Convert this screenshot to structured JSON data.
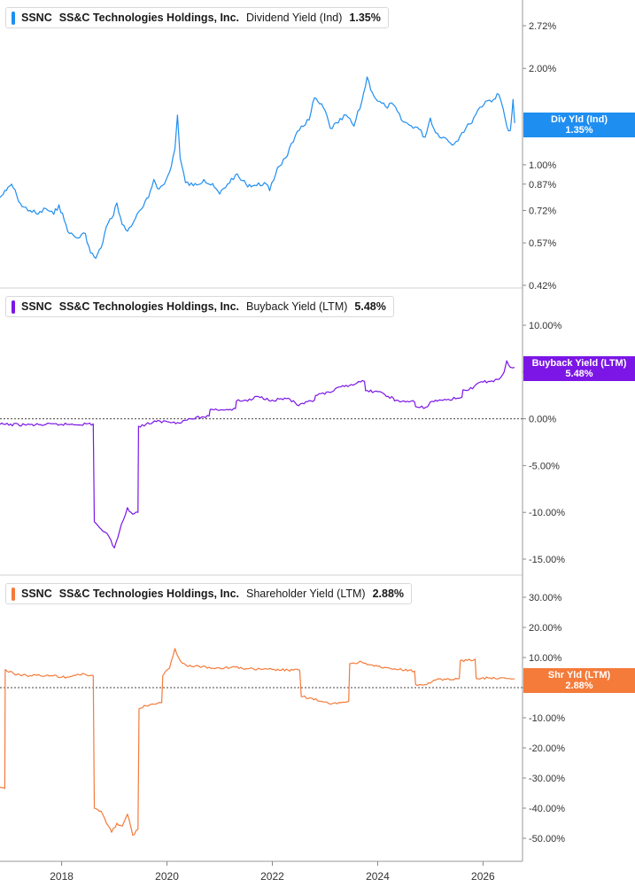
{
  "chart_data": [
    {
      "type": "line",
      "ticker": "SSNC",
      "company": "SS&C Technologies Holdings, Inc.",
      "metric": "Dividend Yield (Ind)",
      "current_value": "1.35%",
      "tag_label": "Div Yld (Ind)",
      "tag_value": "1.35%",
      "color": "#1f8ef1",
      "scale": "log",
      "ylim": [
        0.4,
        3.2
      ],
      "y_ticks": [
        {
          "value": 2.72,
          "label": "2.72%"
        },
        {
          "value": 2.0,
          "label": "2.00%"
        },
        {
          "value": 1.0,
          "label": "1.00%"
        },
        {
          "value": 0.87,
          "label": "0.87%"
        },
        {
          "value": 0.72,
          "label": "0.72%"
        },
        {
          "value": 0.57,
          "label": "0.57%"
        },
        {
          "value": 0.42,
          "label": "0.42%"
        }
      ],
      "zero_line": false,
      "series": [
        {
          "values": [
            [
              2016.83,
              0.79
            ],
            [
              2016.95,
              0.83
            ],
            [
              2017.05,
              0.87
            ],
            [
              2017.15,
              0.8
            ],
            [
              2017.25,
              0.74
            ],
            [
              2017.4,
              0.72
            ],
            [
              2017.55,
              0.7
            ],
            [
              2017.7,
              0.73
            ],
            [
              2017.85,
              0.7
            ],
            [
              2017.95,
              0.75
            ],
            [
              2018.05,
              0.67
            ],
            [
              2018.15,
              0.61
            ],
            [
              2018.3,
              0.59
            ],
            [
              2018.45,
              0.61
            ],
            [
              2018.55,
              0.53
            ],
            [
              2018.65,
              0.51
            ],
            [
              2018.75,
              0.55
            ],
            [
              2018.85,
              0.64
            ],
            [
              2018.95,
              0.68
            ],
            [
              2019.05,
              0.76
            ],
            [
              2019.15,
              0.65
            ],
            [
              2019.25,
              0.62
            ],
            [
              2019.4,
              0.68
            ],
            [
              2019.55,
              0.74
            ],
            [
              2019.65,
              0.79
            ],
            [
              2019.75,
              0.9
            ],
            [
              2019.85,
              0.84
            ],
            [
              2019.95,
              0.87
            ],
            [
              2020.05,
              0.95
            ],
            [
              2020.15,
              1.12
            ],
            [
              2020.2,
              1.43
            ],
            [
              2020.25,
              1.05
            ],
            [
              2020.35,
              0.88
            ],
            [
              2020.5,
              0.86
            ],
            [
              2020.7,
              0.9
            ],
            [
              2020.9,
              0.85
            ],
            [
              2021.0,
              0.81
            ],
            [
              2021.15,
              0.87
            ],
            [
              2021.3,
              0.93
            ],
            [
              2021.5,
              0.87
            ],
            [
              2021.7,
              0.86
            ],
            [
              2021.85,
              0.88
            ],
            [
              2021.95,
              0.83
            ],
            [
              2022.1,
              0.98
            ],
            [
              2022.25,
              1.05
            ],
            [
              2022.4,
              1.18
            ],
            [
              2022.55,
              1.32
            ],
            [
              2022.7,
              1.38
            ],
            [
              2022.8,
              1.62
            ],
            [
              2022.9,
              1.55
            ],
            [
              2023.0,
              1.48
            ],
            [
              2023.1,
              1.3
            ],
            [
              2023.25,
              1.35
            ],
            [
              2023.4,
              1.43
            ],
            [
              2023.55,
              1.32
            ],
            [
              2023.7,
              1.58
            ],
            [
              2023.8,
              1.88
            ],
            [
              2023.9,
              1.68
            ],
            [
              2024.0,
              1.58
            ],
            [
              2024.15,
              1.52
            ],
            [
              2024.3,
              1.54
            ],
            [
              2024.45,
              1.38
            ],
            [
              2024.6,
              1.33
            ],
            [
              2024.75,
              1.31
            ],
            [
              2024.9,
              1.22
            ],
            [
              2025.0,
              1.4
            ],
            [
              2025.1,
              1.26
            ],
            [
              2025.25,
              1.22
            ],
            [
              2025.45,
              1.16
            ],
            [
              2025.6,
              1.26
            ],
            [
              2025.75,
              1.34
            ],
            [
              2025.9,
              1.48
            ],
            [
              2026.05,
              1.58
            ],
            [
              2026.2,
              1.6
            ],
            [
              2026.3,
              1.66
            ],
            [
              2026.38,
              1.5
            ],
            [
              2026.45,
              1.32
            ],
            [
              2026.52,
              1.28
            ],
            [
              2026.55,
              1.45
            ],
            [
              2026.57,
              1.6
            ],
            [
              2026.6,
              1.35
            ]
          ]
        }
      ]
    },
    {
      "type": "line",
      "ticker": "SSNC",
      "company": "SS&C Technologies Holdings, Inc.",
      "metric": "Buyback Yield (LTM)",
      "current_value": "5.48%",
      "tag_label": "Buyback Yield (LTM)",
      "tag_value": "5.48%",
      "color": "#7b16e6",
      "scale": "linear",
      "ylim": [
        -15.0,
        10.0
      ],
      "y_ticks": [
        {
          "value": 10,
          "label": "10.00%"
        },
        {
          "value": 5,
          "label": "5.00%"
        },
        {
          "value": 0,
          "label": "0.00%"
        },
        {
          "value": -5,
          "label": "-5.00%"
        },
        {
          "value": -10,
          "label": "-10.00%"
        },
        {
          "value": -15,
          "label": "-15.00%"
        }
      ],
      "zero_line": true,
      "series": [
        {
          "values": [
            [
              2016.83,
              -0.6
            ],
            [
              2017.5,
              -0.65
            ],
            [
              2018.0,
              -0.6
            ],
            [
              2018.6,
              -0.55
            ],
            [
              2018.62,
              -11.0
            ],
            [
              2018.75,
              -11.8
            ],
            [
              2018.9,
              -12.6
            ],
            [
              2019.0,
              -13.8
            ],
            [
              2019.1,
              -12.0
            ],
            [
              2019.25,
              -9.5
            ],
            [
              2019.35,
              -10.2
            ],
            [
              2019.45,
              -10.0
            ],
            [
              2019.46,
              -0.8
            ],
            [
              2019.6,
              -0.6
            ],
            [
              2019.8,
              -0.3
            ],
            [
              2020.0,
              -0.3
            ],
            [
              2020.2,
              -0.4
            ],
            [
              2020.45,
              0.0
            ],
            [
              2020.7,
              0.2
            ],
            [
              2020.8,
              0.3
            ],
            [
              2020.82,
              1.0
            ],
            [
              2021.2,
              1.0
            ],
            [
              2021.3,
              1.1
            ],
            [
              2021.32,
              1.9
            ],
            [
              2021.6,
              2.0
            ],
            [
              2021.7,
              2.4
            ],
            [
              2022.0,
              2.0
            ],
            [
              2022.3,
              2.2
            ],
            [
              2022.5,
              1.4
            ],
            [
              2022.6,
              1.6
            ],
            [
              2022.8,
              2.0
            ],
            [
              2022.82,
              2.5
            ],
            [
              2023.1,
              2.8
            ],
            [
              2023.3,
              3.4
            ],
            [
              2023.6,
              3.8
            ],
            [
              2023.75,
              4.0
            ],
            [
              2023.77,
              3.0
            ],
            [
              2024.0,
              2.9
            ],
            [
              2024.2,
              2.4
            ],
            [
              2024.3,
              2.2
            ],
            [
              2024.32,
              1.9
            ],
            [
              2024.7,
              1.8
            ],
            [
              2024.72,
              1.3
            ],
            [
              2024.8,
              1.2
            ],
            [
              2024.95,
              1.3
            ],
            [
              2025.0,
              1.8
            ],
            [
              2025.2,
              2.0
            ],
            [
              2025.55,
              2.2
            ],
            [
              2025.6,
              2.3
            ],
            [
              2025.62,
              3.1
            ],
            [
              2025.8,
              3.2
            ],
            [
              2025.9,
              3.8
            ],
            [
              2026.1,
              4.0
            ],
            [
              2026.3,
              4.2
            ],
            [
              2026.4,
              5.0
            ],
            [
              2026.45,
              6.2
            ],
            [
              2026.52,
              5.5
            ],
            [
              2026.6,
              5.48
            ]
          ]
        }
      ]
    },
    {
      "type": "line",
      "ticker": "SSNC",
      "company": "SS&C Technologies Holdings, Inc.",
      "metric": "Shareholder Yield (LTM)",
      "current_value": "2.88%",
      "tag_label": "Shr Yld (LTM)",
      "tag_value": "2.88%",
      "color": "#f47b3a",
      "scale": "linear",
      "ylim": [
        -50.0,
        30.0
      ],
      "y_ticks": [
        {
          "value": 30,
          "label": "30.00%"
        },
        {
          "value": 20,
          "label": "20.00%"
        },
        {
          "value": 10,
          "label": "10.00%"
        },
        {
          "value": 0,
          "label": "0.00%"
        },
        {
          "value": -10,
          "label": "-10.00%"
        },
        {
          "value": -20,
          "label": "-20.00%"
        },
        {
          "value": -30,
          "label": "-30.00%"
        },
        {
          "value": -40,
          "label": "-40.00%"
        },
        {
          "value": -50,
          "label": "-50.00%"
        }
      ],
      "zero_line": true,
      "series": [
        {
          "values": [
            [
              2016.83,
              -33
            ],
            [
              2016.92,
              -33.5
            ],
            [
              2016.93,
              6
            ],
            [
              2017.1,
              4.5
            ],
            [
              2017.4,
              4.0
            ],
            [
              2017.8,
              4.0
            ],
            [
              2018.1,
              3.5
            ],
            [
              2018.3,
              4.5
            ],
            [
              2018.6,
              4.0
            ],
            [
              2018.62,
              -40
            ],
            [
              2018.75,
              -41
            ],
            [
              2018.85,
              -45
            ],
            [
              2018.95,
              -48
            ],
            [
              2019.05,
              -45
            ],
            [
              2019.15,
              -46
            ],
            [
              2019.25,
              -42
            ],
            [
              2019.35,
              -49
            ],
            [
              2019.45,
              -47
            ],
            [
              2019.47,
              -7
            ],
            [
              2019.6,
              -6
            ],
            [
              2019.75,
              -5.5
            ],
            [
              2019.9,
              -5
            ],
            [
              2019.92,
              4.0
            ],
            [
              2020.05,
              6.5
            ],
            [
              2020.15,
              13
            ],
            [
              2020.25,
              9
            ],
            [
              2020.4,
              7
            ],
            [
              2020.6,
              7.2
            ],
            [
              2020.8,
              6.8
            ],
            [
              2021.0,
              6.5
            ],
            [
              2021.3,
              6.8
            ],
            [
              2021.5,
              6.3
            ],
            [
              2021.8,
              6.0
            ],
            [
              2022.0,
              6.0
            ],
            [
              2022.3,
              5.8
            ],
            [
              2022.52,
              5.8
            ],
            [
              2022.55,
              -3
            ],
            [
              2022.75,
              -3.5
            ],
            [
              2022.9,
              -4.5
            ],
            [
              2023.1,
              -5.5
            ],
            [
              2023.3,
              -5
            ],
            [
              2023.45,
              -4.5
            ],
            [
              2023.47,
              8
            ],
            [
              2023.7,
              8.5
            ],
            [
              2023.9,
              7.5
            ],
            [
              2024.1,
              6.5
            ],
            [
              2024.4,
              6.0
            ],
            [
              2024.7,
              5.5
            ],
            [
              2024.72,
              1
            ],
            [
              2024.9,
              1.0
            ],
            [
              2025.0,
              1.5
            ],
            [
              2025.1,
              2.5
            ],
            [
              2025.3,
              2.8
            ],
            [
              2025.55,
              3.0
            ],
            [
              2025.57,
              9
            ],
            [
              2025.7,
              9
            ],
            [
              2025.85,
              9.5
            ],
            [
              2025.87,
              3.0
            ],
            [
              2026.1,
              3.2
            ],
            [
              2026.3,
              3.0
            ],
            [
              2026.5,
              3.0
            ],
            [
              2026.6,
              2.88
            ]
          ]
        }
      ]
    }
  ],
  "x_axis": {
    "xlim": [
      2016.83,
      2026.75
    ],
    "ticks": [
      {
        "value": 2018,
        "label": "2018"
      },
      {
        "value": 2020,
        "label": "2020"
      },
      {
        "value": 2022,
        "label": "2022"
      },
      {
        "value": 2024,
        "label": "2024"
      },
      {
        "value": 2026,
        "label": "2026"
      }
    ]
  }
}
